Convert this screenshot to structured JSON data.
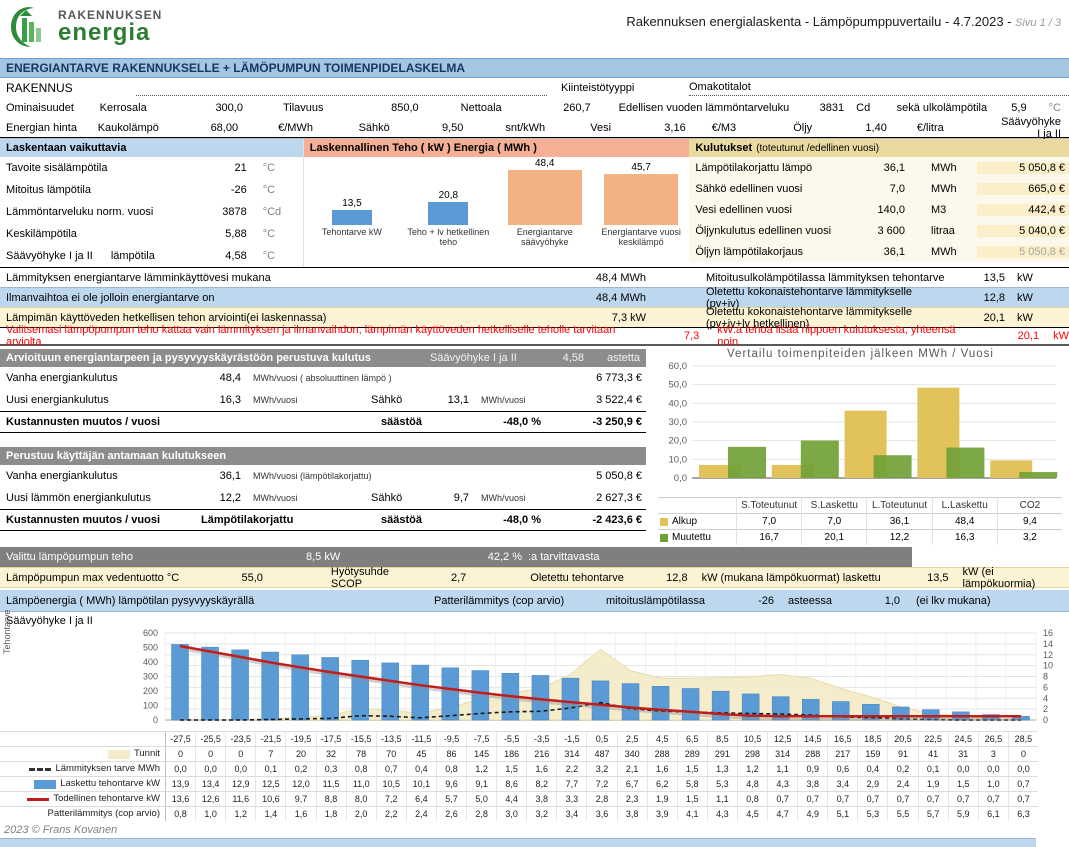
{
  "header": {
    "logo_top": "RAKENNUKSEN",
    "logo_bottom": "energia",
    "title": "Rakennuksen energialaskenta  -  Lämpöpumppuvertailu  -  4.7.2023  -",
    "page": "Sivu 1 / 3"
  },
  "title_bar": "ENERGIANTARVE RAKENNUKSELLE + LÄMÖPUMPUN TOIMENPIDELASKELMA",
  "rakennus": {
    "label": "RAKENNUS",
    "type_label": "Kiinteistötyyppi",
    "type_value": "Omakotitalot",
    "row1": {
      "label": "Ominaisuudet",
      "c1": "Kerrosala",
      "v1": "300,0",
      "c2": "Tilavuus",
      "v2": "850,0",
      "c3": "Nettoala",
      "v3": "260,7",
      "c4": "Edellisen vuoden lämmöntarveluku",
      "v4": "3831",
      "u4": "Cd",
      "c5": "sekä ulkolämpötila",
      "v5": "5,9",
      "u5": "°C"
    },
    "row2": {
      "label": "Energian hinta",
      "c1": "Kaukolämpö",
      "v1": "68,00",
      "u1": "€/MWh",
      "c2": "Sähkö",
      "v2": "9,50",
      "u2": "snt/kWh",
      "c3": "Vesi",
      "v3": "3,16",
      "u3": "€/M3",
      "c4": "Öljy",
      "v4": "1,40",
      "u4": "€/litra",
      "note": "Säävyöhyke I ja II"
    }
  },
  "laskentaan": {
    "header": "Laskentaan vaikuttavia",
    "rows": [
      {
        "l1": "Tavoite sisälämpötila",
        "l2": "",
        "value": "21",
        "unit": "°C"
      },
      {
        "l1": "Mitoitus lämpötila",
        "l2": "",
        "value": "-26",
        "unit": "°C"
      },
      {
        "l1": "Lämmöntarveluku norm. vuosi",
        "l2": "",
        "value": "3878",
        "unit": "°Cd"
      },
      {
        "l1": "Keskilämpötila",
        "l2": "",
        "value": "5,88",
        "unit": "°C"
      },
      {
        "l1": "Säävyöhyke I ja II",
        "l2": "lämpötila",
        "value": "4,58",
        "unit": "°C"
      }
    ]
  },
  "kulutukset": {
    "header": "Kulutukset",
    "header_sub": "(toteutunut /edellinen vuosi)",
    "rows": [
      {
        "label": "Lämpötilakorjattu lämpö",
        "value": "36,1",
        "unit": "MWh",
        "cost": "5 050,8 €"
      },
      {
        "label": "Sähkö edellinen vuosi",
        "value": "7,0",
        "unit": "MWh",
        "cost": "665,0 €"
      },
      {
        "label": "Vesi edellinen vuosi",
        "value": "140,0",
        "unit": "M3",
        "cost": "442,4 €"
      },
      {
        "label": "Öljynkulutus edellinen vuosi",
        "value": "3 600",
        "unit": "litraa",
        "cost": "5 040,0 €"
      },
      {
        "label": "Öljyn lämpötilakorjaus",
        "value": "36,1",
        "unit": "MWh",
        "cost": "5 050,8 €"
      }
    ]
  },
  "summary": [
    {
      "left": "Lämmityksen  energiantarve lämminkäyttövesi mukana",
      "lv": "48,4 MWh",
      "right": "Mitoitusulkolämpötilassa lämmityksen tehontarve",
      "rv": "13,5",
      "ru": "kW"
    },
    {
      "left": "Ilmanvaihtoa ei ole jolloin energiantarve on",
      "lv": "48,4 MWh",
      "right": "Oletettu kokonaistehontarve lämmitykselle (pv+iv)",
      "rv": "12,8",
      "ru": "kW"
    },
    {
      "left": "Lämpimän käyttöveden hetkellisen tehon arviointi(ei laskennassa)",
      "lv": "7,3 kW",
      "right": "Oletettu kokonaistehontarve lämmitykselle (pv+iv+lv hetkellinen)",
      "rv": "20,1",
      "ru": "kW"
    }
  ],
  "warning": {
    "text1": "Valitsemasi lämpöpumpun teho kattaa vain lämmityksen ja ilmanvaihdon, lämpimän käyttöveden hetkelliselle teholle tarvitaan arviolta",
    "v1": "7,3",
    "text2": "kW:a tehoa lisää riippuen kulutuksesta, yhteensä noin",
    "v2": "20,1",
    "unit": "kW"
  },
  "arvioituun": {
    "header": "Arvioituun energiantarpeen ja pysyvyyskäyrästöön perustuva kulutus",
    "h2": "Säävyöhyke I ja II",
    "h3": "4,58",
    "h4": "astetta",
    "row1": {
      "label": "Vanha energiankulutus",
      "v1": "48,4",
      "u1": "MWh/vuosi ( absoluuttinen lämpö )",
      "cost": "6 773,3 €"
    },
    "row2": {
      "label": "Uusi energiankulutus",
      "v1": "16,3",
      "u1": "MWh/vuosi",
      "c2": "Sähkö",
      "v2": "13,1",
      "u2": "MWh/vuosi",
      "cost": "3 522,4 €"
    },
    "total": {
      "label": "Kustannusten muutos / vuosi",
      "note": "",
      "mid": "säästöä",
      "pct": "-48,0 %",
      "cost": "-3 250,9 €"
    }
  },
  "perustuu": {
    "header": "Perustuu käyttäjän antamaan kulutukseen",
    "row1": {
      "label": "Vanha energiankulutus",
      "v1": "36,1",
      "u1": "MWh/vuosi (lämpötilakorjattu)",
      "cost": "5 050,8 €"
    },
    "row2": {
      "label": "Uusi lämmön energiankulutus",
      "v1": "12,2",
      "u1": "MWh/vuosi",
      "c2": "Sähkö",
      "v2": "9,7",
      "u2": "MWh/vuosi",
      "cost": "2 627,3 €"
    },
    "total": {
      "label": "Kustannusten muutos / vuosi",
      "note": "Lämpötilakorjattu",
      "mid": "säästöä",
      "pct": "-48,0 %",
      "cost": "-2 423,6 €"
    }
  },
  "valittu": {
    "label": "Valittu lämpöpumpun teho",
    "power": "8,5 kW",
    "pct": "42,2 %",
    "suffix": ":a  tarvittavasta"
  },
  "pump_row": {
    "l1": "Lämpöpumpun max vedentuotto °C",
    "v1": "55,0",
    "l2": "Hyötysuhde SCOP",
    "v2": "2,7",
    "l3": "Oletettu tehontarve",
    "v3": "12,8",
    "u3": "kW (mukana lämpökuormat) laskettu",
    "v4": "13,5",
    "u4": "kW (ei lämpökuormia)"
  },
  "energy_row": {
    "l1": "Lämpöenergia ( MWh) lämpötilan pysyvyyskäyrällä",
    "l2": "Patterilämmitys (cop arvio)",
    "l3": "mitoituslämpötilassa",
    "v1": "-26",
    "u1": "asteessa",
    "v2": "1,0",
    "u2": "(ei lkv mukana)"
  },
  "saavyohyke_note": "Säävyöhyke I ja II",
  "footer": "2023 © Frans Kovanen",
  "chart_data": {
    "power_energy": {
      "type": "bar",
      "title": "Laskennallinen Teho ( kW )  Energia ( MWh )",
      "bars": [
        {
          "label": "Tehontarve kW",
          "value": "13,5",
          "color": "#5B9BD5"
        },
        {
          "label": "Teho + lv hetkellinen teho",
          "value": "20,8",
          "color": "#5B9BD5"
        },
        {
          "label": "Energiantarve säävyöhyke",
          "value": "48,4",
          "color": "#F4B183"
        },
        {
          "label": "Energiantarve vuosi keskilämpö",
          "value": "45,7",
          "color": "#F4B183"
        }
      ],
      "ylim": [
        0,
        55
      ]
    },
    "comparison": {
      "type": "bar",
      "title": "Vertailu toimenpiteiden jälkeen MWh / Vuosi",
      "categories": [
        "S.Toteutunut",
        "S.Laskettu",
        "L.Toteutunut",
        "L.Laskettu",
        "CO2"
      ],
      "ylim": [
        0,
        60
      ],
      "ytick_labels": [
        "60,0",
        "50,0",
        "40,0",
        "30,0",
        "20,0",
        "10,0",
        "0,0"
      ],
      "series": [
        {
          "name": "Alkup",
          "color": "#E2C25B",
          "values": [
            "7,0",
            "7,0",
            "36,1",
            "48,4",
            "9,4"
          ]
        },
        {
          "name": "Muutettu",
          "color": "#71A236",
          "values": [
            "16,7",
            "20,1",
            "12,2",
            "16,3",
            "3,2"
          ]
        }
      ]
    },
    "duration": {
      "type": "combo",
      "ylabel_left": "Tehontarve",
      "left_ticks": [
        "600",
        "500",
        "400",
        "300",
        "200",
        "100",
        "0"
      ],
      "left_max": 600,
      "right_ticks": [
        "16",
        "14",
        "12",
        "10",
        "8",
        "6",
        "4",
        "2",
        "0"
      ],
      "right_max": 16,
      "categories": [
        "-27,5",
        "-25,5",
        "-23,5",
        "-21,5",
        "-19,5",
        "-17,5",
        "-15,5",
        "-13,5",
        "-11,5",
        "-9,5",
        "-7,5",
        "-5,5",
        "-3,5",
        "-1,5",
        "0,5",
        "2,5",
        "4,5",
        "6,5",
        "8,5",
        "10,5",
        "12,5",
        "14,5",
        "16,5",
        "18,5",
        "20,5",
        "22,5",
        "24,5",
        "26,5",
        "28,5"
      ],
      "series": [
        {
          "name": "Tunnit",
          "type": "area",
          "axis": "left",
          "color": "#F4EBC9",
          "values": [
            "0",
            "0",
            "0",
            "7",
            "20",
            "32",
            "78",
            "70",
            "45",
            "86",
            "145",
            "186",
            "216",
            "314",
            "487",
            "340",
            "288",
            "289",
            "291",
            "298",
            "314",
            "288",
            "217",
            "159",
            "91",
            "41",
            "31",
            "3",
            "0"
          ]
        },
        {
          "name": "Lämmityksen tarve MWh",
          "type": "dash",
          "axis": "right",
          "color": "#1A1A1A",
          "values": [
            "0,0",
            "0,0",
            "0,0",
            "0,1",
            "0,2",
            "0,3",
            "0,8",
            "0,7",
            "0,4",
            "0,8",
            "1,2",
            "1,5",
            "1,6",
            "2,2",
            "3,2",
            "2,1",
            "1,6",
            "1,5",
            "1,3",
            "1,2",
            "1,1",
            "0,9",
            "0,6",
            "0,4",
            "0,2",
            "0,1",
            "0,0",
            "0,0",
            "0,0"
          ]
        },
        {
          "name": "Laskettu tehontarve kW",
          "type": "bar",
          "axis": "right",
          "color": "#5B9BD5",
          "values": [
            "13,9",
            "13,4",
            "12,9",
            "12,5",
            "12,0",
            "11,5",
            "11,0",
            "10,5",
            "10,1",
            "9,6",
            "9,1",
            "8,6",
            "8,2",
            "7,7",
            "7,2",
            "6,7",
            "6,2",
            "5,8",
            "5,3",
            "4,8",
            "4,3",
            "3,8",
            "3,4",
            "2,9",
            "2,4",
            "1,9",
            "1,5",
            "1,0",
            "0,7"
          ]
        },
        {
          "name": "Todellinen tehontarve kW",
          "type": "line",
          "axis": "right",
          "color": "#BE1E1E",
          "values": [
            "13,6",
            "12,6",
            "11,6",
            "10,6",
            "9,7",
            "8,8",
            "8,0",
            "7,2",
            "6,4",
            "5,7",
            "5,0",
            "4,4",
            "3,8",
            "3,3",
            "2,8",
            "2,3",
            "1,9",
            "1,5",
            "1,1",
            "0,8",
            "0,7",
            "0,7",
            "0,7",
            "0,7",
            "0,7",
            "0,7",
            "0,7",
            "0,7",
            "0,7"
          ]
        },
        {
          "name": "Patterilämmitys (cop arvio)",
          "type": "none",
          "axis": "right",
          "color": "",
          "values": [
            "0,8",
            "1,0",
            "1,2",
            "1,4",
            "1,6",
            "1,8",
            "2,0",
            "2,2",
            "2,4",
            "2,6",
            "2,8",
            "3,0",
            "3,2",
            "3,4",
            "3,6",
            "3,8",
            "3,9",
            "4,1",
            "4,3",
            "4,5",
            "4,7",
            "4,9",
            "5,1",
            "5,3",
            "5,5",
            "5,7",
            "5,9",
            "6,1",
            "6,3"
          ]
        }
      ]
    }
  }
}
